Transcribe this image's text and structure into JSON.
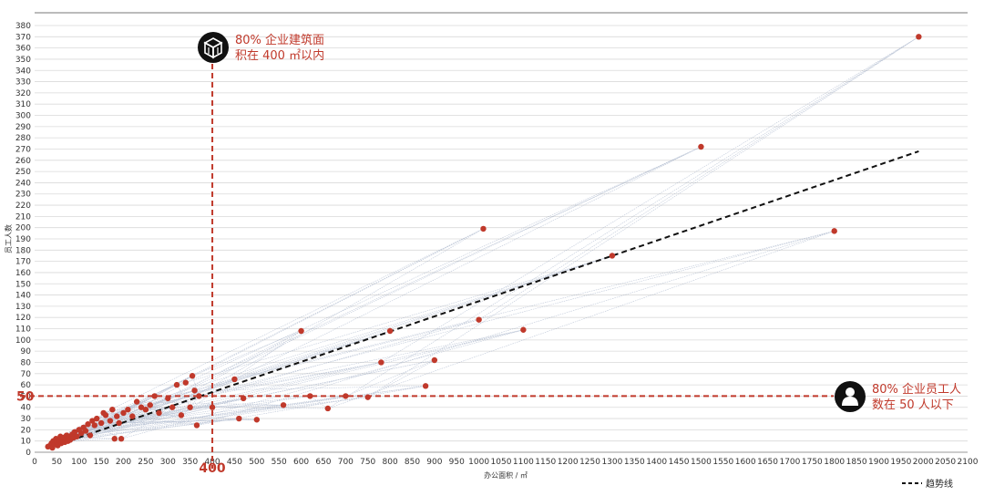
{
  "chart_data": {
    "type": "scatter",
    "title": "",
    "xlabel": "办公面积 / ㎡",
    "ylabel": "员工人数",
    "xlim": [
      0,
      2100
    ],
    "ylim": [
      0,
      380
    ],
    "x_ticks": [
      0,
      50,
      100,
      150,
      200,
      250,
      300,
      350,
      400,
      450,
      500,
      550,
      600,
      650,
      700,
      750,
      800,
      850,
      900,
      950,
      1000,
      1050,
      1100,
      1150,
      1200,
      1250,
      1300,
      1350,
      1400,
      1450,
      1500,
      1550,
      1600,
      1650,
      1700,
      1750,
      1800,
      1850,
      1900,
      1950,
      2000,
      2050,
      2100
    ],
    "y_ticks": [
      0,
      10,
      20,
      30,
      40,
      50,
      60,
      70,
      80,
      90,
      100,
      110,
      120,
      130,
      140,
      150,
      160,
      170,
      180,
      190,
      200,
      210,
      220,
      230,
      240,
      250,
      260,
      270,
      280,
      290,
      300,
      310,
      320,
      330,
      340,
      350,
      360,
      370,
      380
    ],
    "grid": "horizontal",
    "marker_color": "#c0392b",
    "points": [
      [
        30,
        5
      ],
      [
        35,
        6
      ],
      [
        38,
        8
      ],
      [
        40,
        4
      ],
      [
        42,
        10
      ],
      [
        45,
        7
      ],
      [
        48,
        12
      ],
      [
        50,
        9
      ],
      [
        52,
        6
      ],
      [
        55,
        11
      ],
      [
        58,
        14
      ],
      [
        60,
        8
      ],
      [
        62,
        10
      ],
      [
        65,
        13
      ],
      [
        68,
        9
      ],
      [
        70,
        12
      ],
      [
        72,
        15
      ],
      [
        75,
        10
      ],
      [
        78,
        14
      ],
      [
        80,
        11
      ],
      [
        85,
        16
      ],
      [
        88,
        13
      ],
      [
        90,
        18
      ],
      [
        95,
        14
      ],
      [
        100,
        20
      ],
      [
        105,
        17
      ],
      [
        110,
        22
      ],
      [
        115,
        19
      ],
      [
        120,
        25
      ],
      [
        125,
        15
      ],
      [
        130,
        28
      ],
      [
        135,
        24
      ],
      [
        140,
        30
      ],
      [
        150,
        26
      ],
      [
        155,
        35
      ],
      [
        160,
        33
      ],
      [
        170,
        28
      ],
      [
        175,
        38
      ],
      [
        180,
        12
      ],
      [
        185,
        32
      ],
      [
        190,
        26
      ],
      [
        195,
        12
      ],
      [
        200,
        35
      ],
      [
        210,
        38
      ],
      [
        220,
        32
      ],
      [
        230,
        45
      ],
      [
        240,
        40
      ],
      [
        250,
        38
      ],
      [
        260,
        42
      ],
      [
        270,
        50
      ],
      [
        280,
        35
      ],
      [
        300,
        48
      ],
      [
        310,
        40
      ],
      [
        320,
        60
      ],
      [
        330,
        33
      ],
      [
        340,
        62
      ],
      [
        350,
        40
      ],
      [
        355,
        68
      ],
      [
        360,
        55
      ],
      [
        365,
        24
      ],
      [
        370,
        50
      ],
      [
        400,
        40
      ],
      [
        450,
        65
      ],
      [
        460,
        30
      ],
      [
        470,
        48
      ],
      [
        500,
        29
      ],
      [
        560,
        42
      ],
      [
        600,
        108
      ],
      [
        620,
        50
      ],
      [
        660,
        39
      ],
      [
        700,
        50
      ],
      [
        750,
        49
      ],
      [
        780,
        80
      ],
      [
        800,
        108
      ],
      [
        880,
        59
      ],
      [
        900,
        82
      ],
      [
        1000,
        118
      ],
      [
        1010,
        199
      ],
      [
        1100,
        109
      ],
      [
        1300,
        175
      ],
      [
        1500,
        272
      ],
      [
        1800,
        197
      ],
      [
        1990,
        370
      ]
    ],
    "trendline": {
      "name": "趋势线",
      "from": [
        40,
        5
      ],
      "to": [
        1990,
        268
      ],
      "style": "dashed"
    },
    "reference_lines": [
      {
        "axis": "x",
        "value": 400,
        "label": "400"
      },
      {
        "axis": "y",
        "value": 50,
        "label": "50"
      }
    ]
  },
  "annotations": {
    "area": {
      "line1": "80% 企业建筑面",
      "line2": "积在 400 ㎡以内",
      "icon": "building-icon"
    },
    "staff": {
      "line1": "80% 企业员工人",
      "line2": "数在 50 人以下",
      "icon": "person-icon"
    }
  },
  "legend": {
    "trend_label": "趋势线"
  },
  "colors": {
    "accent": "#c0392b",
    "grid": "#d9d9d9",
    "trend": "#111111",
    "tangle": "#8a9ab8"
  }
}
